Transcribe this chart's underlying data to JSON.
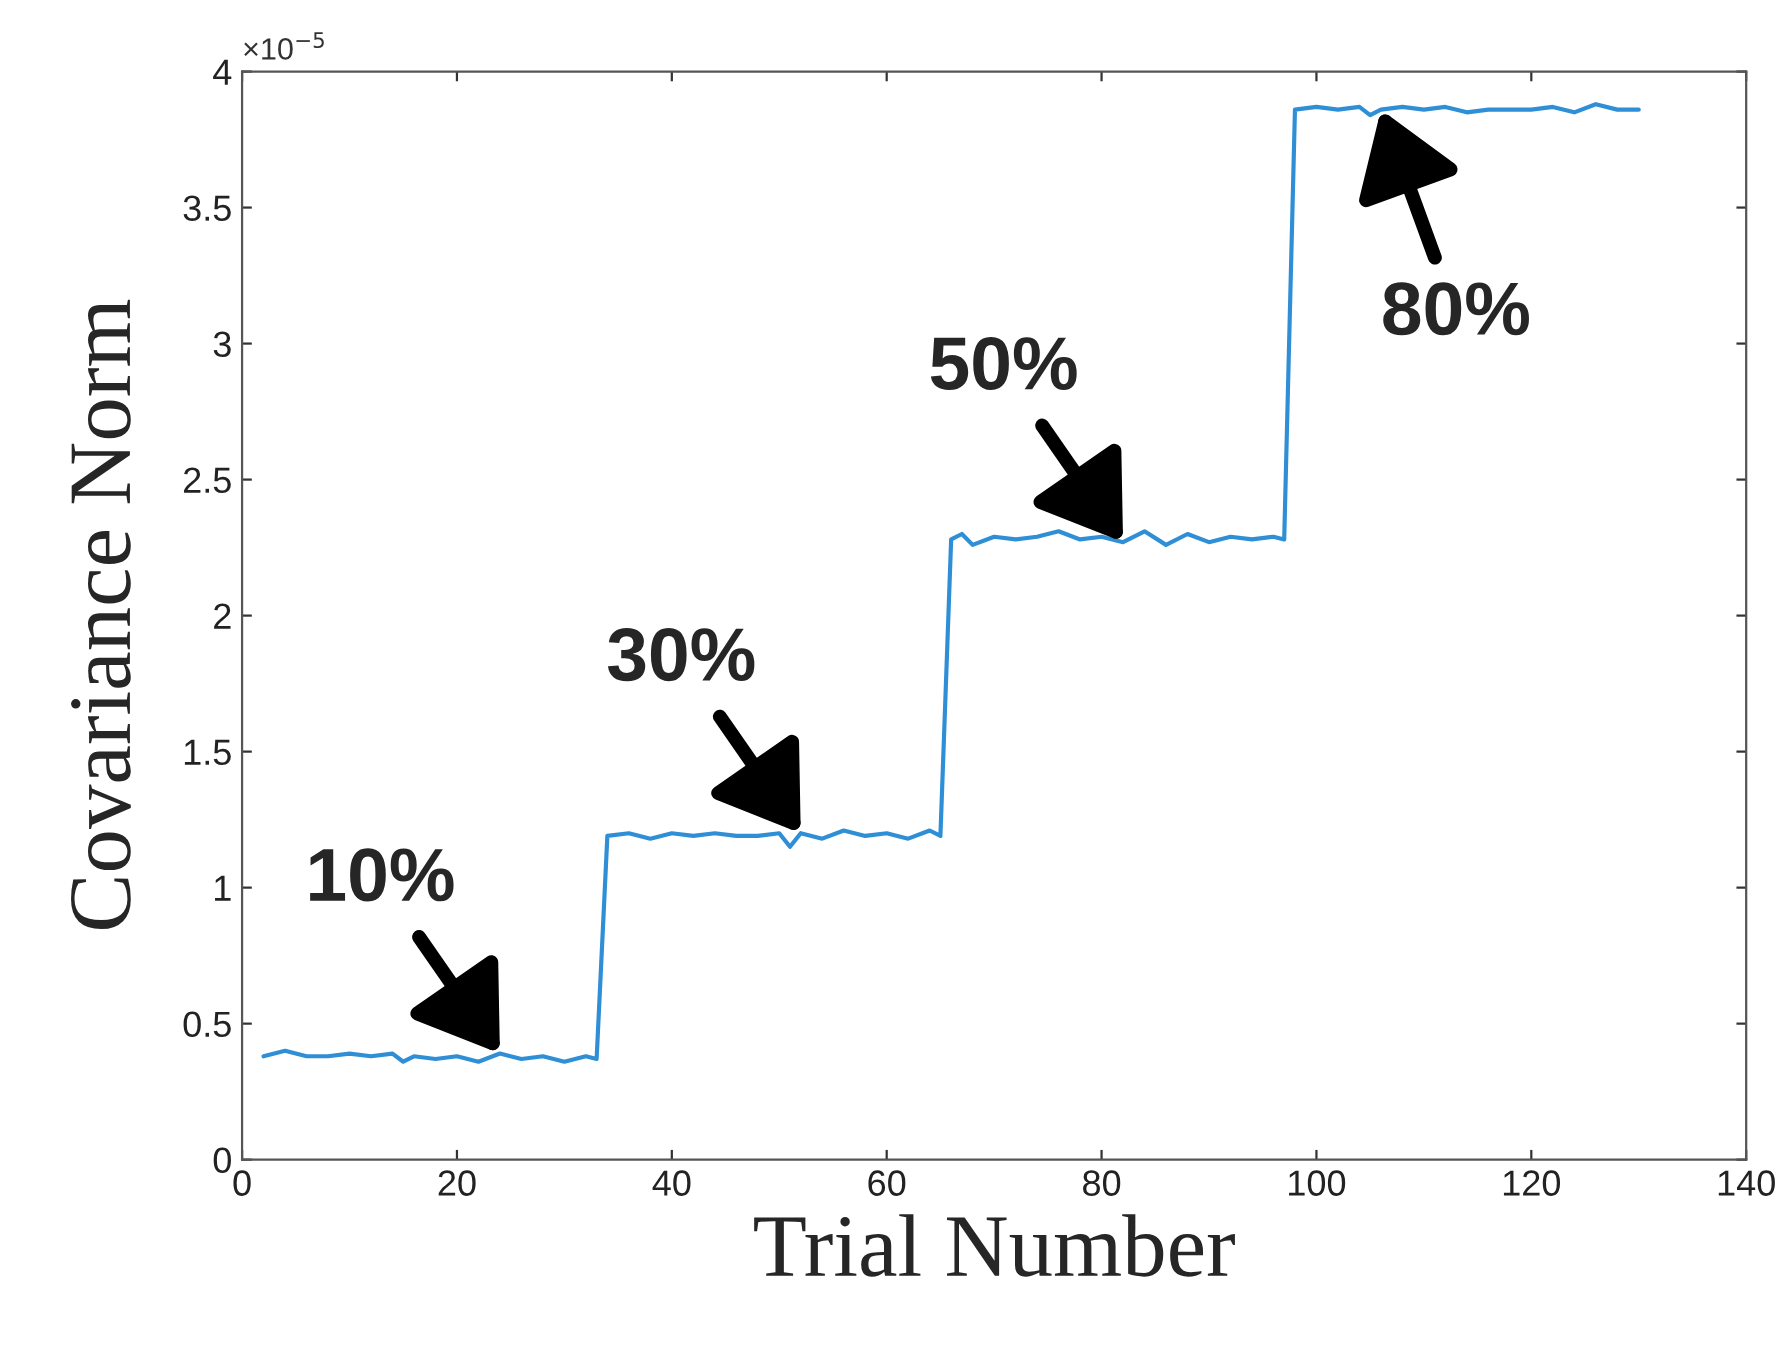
{
  "chart_data": {
    "type": "line",
    "xlabel": "Trial Number",
    "ylabel": "Covariance Norm",
    "x": [
      2,
      4,
      6,
      8,
      10,
      12,
      14,
      15,
      16,
      18,
      20,
      22,
      24,
      26,
      28,
      30,
      32,
      33,
      34,
      36,
      38,
      40,
      42,
      44,
      46,
      48,
      50,
      51,
      52,
      54,
      56,
      58,
      60,
      62,
      64,
      65,
      66,
      67,
      68,
      70,
      72,
      74,
      76,
      78,
      80,
      82,
      84,
      86,
      88,
      90,
      92,
      94,
      96,
      97,
      98,
      100,
      102,
      104,
      105,
      106,
      108,
      110,
      112,
      114,
      116,
      118,
      120,
      122,
      124,
      126,
      128,
      130
    ],
    "series": [
      {
        "color": "#2f8fd6",
        "values": [
          0.38,
          0.4,
          0.38,
          0.38,
          0.39,
          0.38,
          0.39,
          0.36,
          0.38,
          0.37,
          0.38,
          0.36,
          0.39,
          0.37,
          0.38,
          0.36,
          0.38,
          0.37,
          1.19,
          1.2,
          1.18,
          1.2,
          1.19,
          1.2,
          1.19,
          1.19,
          1.2,
          1.15,
          1.2,
          1.18,
          1.21,
          1.19,
          1.2,
          1.18,
          1.21,
          1.19,
          2.28,
          2.3,
          2.26,
          2.29,
          2.28,
          2.29,
          2.31,
          2.28,
          2.29,
          2.27,
          2.31,
          2.26,
          2.3,
          2.27,
          2.29,
          2.28,
          2.29,
          2.28,
          3.86,
          3.87,
          3.86,
          3.87,
          3.84,
          3.86,
          3.87,
          3.86,
          3.87,
          3.85,
          3.86,
          3.86,
          3.86,
          3.87,
          3.85,
          3.88,
          3.86,
          3.86
        ]
      }
    ],
    "xlim": [
      0,
      140
    ],
    "xticks": [
      0,
      20,
      40,
      60,
      80,
      100,
      120,
      140
    ],
    "ylim": [
      0,
      4
    ],
    "yticks": [
      0,
      0.5,
      1,
      1.5,
      2,
      2.5,
      3,
      3.5,
      4
    ],
    "marker": "none",
    "line_style": "solid",
    "grid": false,
    "annotations": [
      "×10$^{−5}$",
      {
        "text": "10%",
        "x": 24,
        "y": 0.39
      },
      {
        "text": "30%",
        "x": 52,
        "y": 1.2
      },
      {
        "text": "50%",
        "x": 82,
        "y": 2.27
      },
      {
        "text": "80%",
        "x": 106,
        "y": 3.86
      }
    ]
  }
}
